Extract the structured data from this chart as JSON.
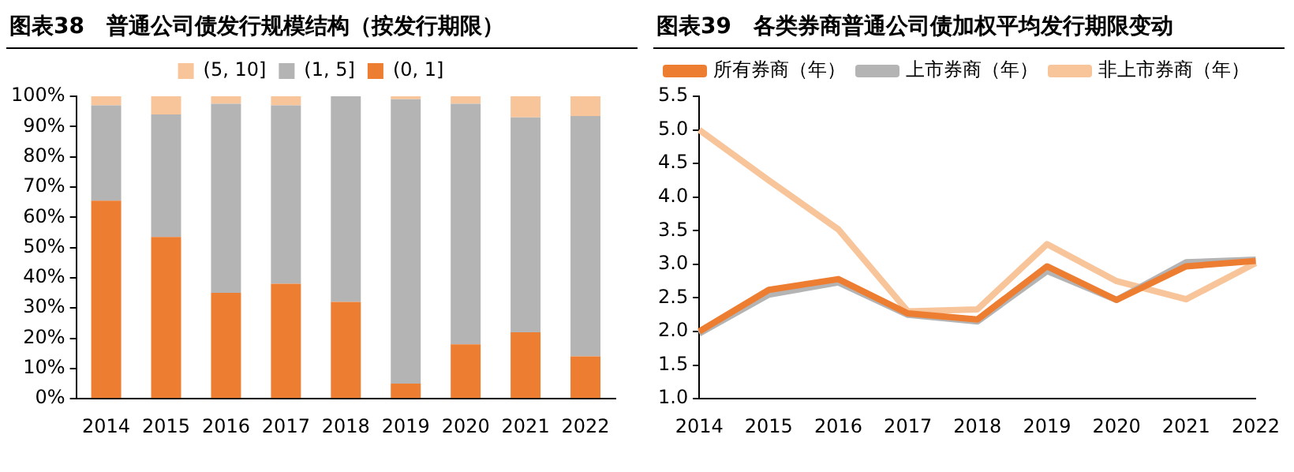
{
  "chart_data": [
    {
      "type": "bar",
      "title": "图表38　普通公司债发行规模结构（按发行期限）",
      "categories": [
        "2014",
        "2015",
        "2016",
        "2017",
        "2018",
        "2019",
        "2020",
        "2021",
        "2022"
      ],
      "stacked": true,
      "legend": "top",
      "series": [
        {
          "name": "(0, 1]",
          "color": "#ed7d31",
          "values": [
            65.5,
            53.5,
            35,
            38,
            32,
            5,
            18,
            22,
            14
          ]
        },
        {
          "name": "(1, 5]",
          "color": "#b4b4b4",
          "values": [
            31.5,
            40.5,
            62.5,
            59,
            68,
            94,
            79.5,
            71,
            79.5
          ]
        },
        {
          "name": "(5, 10]",
          "color": "#f8c49a",
          "values": [
            3,
            6,
            2.5,
            3,
            0,
            1,
            2.5,
            7,
            6.5
          ]
        }
      ],
      "ylim": [
        0,
        100
      ],
      "yticks": [
        {
          "value": 0,
          "label": "0%"
        },
        {
          "value": 10,
          "label": "10%"
        },
        {
          "value": 20,
          "label": "20%"
        },
        {
          "value": 30,
          "label": "30%"
        },
        {
          "value": 40,
          "label": "40%"
        },
        {
          "value": 50,
          "label": "50%"
        },
        {
          "value": 60,
          "label": "60%"
        },
        {
          "value": 70,
          "label": "70%"
        },
        {
          "value": 80,
          "label": "80%"
        },
        {
          "value": 90,
          "label": "90%"
        },
        {
          "value": 100,
          "label": "100%"
        }
      ]
    },
    {
      "type": "line",
      "title": "图表39　各类券商普通公司债加权平均发行期限变动",
      "categories": [
        "2014",
        "2015",
        "2016",
        "2017",
        "2018",
        "2019",
        "2020",
        "2021",
        "2022"
      ],
      "legend": "top",
      "marker": "none",
      "series": [
        {
          "name": "所有券商（年）",
          "color": "#ed7d31",
          "values": [
            2.0,
            2.62,
            2.78,
            2.27,
            2.18,
            2.97,
            2.47,
            2.97,
            3.05
          ]
        },
        {
          "name": "上市券商（年）",
          "color": "#b4b4b4",
          "values": [
            1.97,
            2.55,
            2.73,
            2.25,
            2.15,
            2.9,
            2.47,
            3.03,
            3.07
          ]
        },
        {
          "name": "非上市券商（年）",
          "color": "#f8c49a",
          "values": [
            5.0,
            4.25,
            3.52,
            2.3,
            2.33,
            3.3,
            2.75,
            2.48,
            3.02
          ]
        }
      ],
      "ylim": [
        1,
        5.5
      ],
      "yticks": [
        {
          "value": 1,
          "label": "1.0"
        },
        {
          "value": 1.5,
          "label": "1.5"
        },
        {
          "value": 2,
          "label": "2.0"
        },
        {
          "value": 2.5,
          "label": "2.5"
        },
        {
          "value": 3,
          "label": "3.0"
        },
        {
          "value": 3.5,
          "label": "3.5"
        },
        {
          "value": 4,
          "label": "4.0"
        },
        {
          "value": 4.5,
          "label": "4.5"
        },
        {
          "value": 5,
          "label": "5.0"
        },
        {
          "value": 5.5,
          "label": "5.5"
        }
      ]
    }
  ]
}
